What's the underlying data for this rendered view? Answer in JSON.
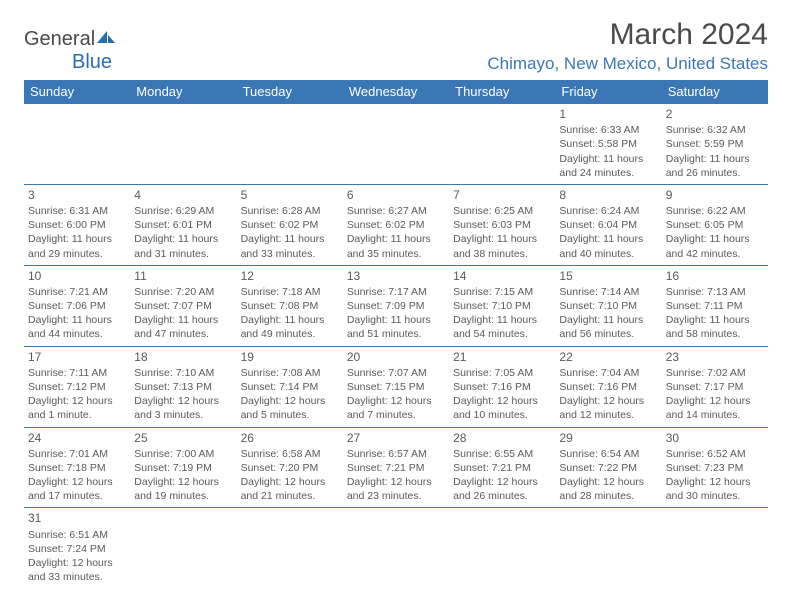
{
  "logo": {
    "general": "General",
    "blue": "Blue"
  },
  "title": "March 2024",
  "location": "Chimayo, New Mexico, United States",
  "colors": {
    "header_bg": "#3b77b5",
    "header_text": "#ffffff",
    "border": "#3b77b5",
    "location_text": "#3b77b5",
    "body_text": "#5a5a5a",
    "logo_blue": "#2a6cb0"
  },
  "weekdays": [
    "Sunday",
    "Monday",
    "Tuesday",
    "Wednesday",
    "Thursday",
    "Friday",
    "Saturday"
  ],
  "cells": [
    {
      "blank": true
    },
    {
      "blank": true
    },
    {
      "blank": true
    },
    {
      "blank": true
    },
    {
      "blank": true
    },
    {
      "day": "1",
      "sunrise": "Sunrise: 6:33 AM",
      "sunset": "Sunset: 5:58 PM",
      "daylight": "Daylight: 11 hours and 24 minutes."
    },
    {
      "day": "2",
      "sunrise": "Sunrise: 6:32 AM",
      "sunset": "Sunset: 5:59 PM",
      "daylight": "Daylight: 11 hours and 26 minutes."
    },
    {
      "day": "3",
      "sunrise": "Sunrise: 6:31 AM",
      "sunset": "Sunset: 6:00 PM",
      "daylight": "Daylight: 11 hours and 29 minutes."
    },
    {
      "day": "4",
      "sunrise": "Sunrise: 6:29 AM",
      "sunset": "Sunset: 6:01 PM",
      "daylight": "Daylight: 11 hours and 31 minutes."
    },
    {
      "day": "5",
      "sunrise": "Sunrise: 6:28 AM",
      "sunset": "Sunset: 6:02 PM",
      "daylight": "Daylight: 11 hours and 33 minutes."
    },
    {
      "day": "6",
      "sunrise": "Sunrise: 6:27 AM",
      "sunset": "Sunset: 6:02 PM",
      "daylight": "Daylight: 11 hours and 35 minutes."
    },
    {
      "day": "7",
      "sunrise": "Sunrise: 6:25 AM",
      "sunset": "Sunset: 6:03 PM",
      "daylight": "Daylight: 11 hours and 38 minutes."
    },
    {
      "day": "8",
      "sunrise": "Sunrise: 6:24 AM",
      "sunset": "Sunset: 6:04 PM",
      "daylight": "Daylight: 11 hours and 40 minutes."
    },
    {
      "day": "9",
      "sunrise": "Sunrise: 6:22 AM",
      "sunset": "Sunset: 6:05 PM",
      "daylight": "Daylight: 11 hours and 42 minutes."
    },
    {
      "day": "10",
      "sunrise": "Sunrise: 7:21 AM",
      "sunset": "Sunset: 7:06 PM",
      "daylight": "Daylight: 11 hours and 44 minutes."
    },
    {
      "day": "11",
      "sunrise": "Sunrise: 7:20 AM",
      "sunset": "Sunset: 7:07 PM",
      "daylight": "Daylight: 11 hours and 47 minutes."
    },
    {
      "day": "12",
      "sunrise": "Sunrise: 7:18 AM",
      "sunset": "Sunset: 7:08 PM",
      "daylight": "Daylight: 11 hours and 49 minutes."
    },
    {
      "day": "13",
      "sunrise": "Sunrise: 7:17 AM",
      "sunset": "Sunset: 7:09 PM",
      "daylight": "Daylight: 11 hours and 51 minutes."
    },
    {
      "day": "14",
      "sunrise": "Sunrise: 7:15 AM",
      "sunset": "Sunset: 7:10 PM",
      "daylight": "Daylight: 11 hours and 54 minutes."
    },
    {
      "day": "15",
      "sunrise": "Sunrise: 7:14 AM",
      "sunset": "Sunset: 7:10 PM",
      "daylight": "Daylight: 11 hours and 56 minutes."
    },
    {
      "day": "16",
      "sunrise": "Sunrise: 7:13 AM",
      "sunset": "Sunset: 7:11 PM",
      "daylight": "Daylight: 11 hours and 58 minutes."
    },
    {
      "day": "17",
      "sunrise": "Sunrise: 7:11 AM",
      "sunset": "Sunset: 7:12 PM",
      "daylight": "Daylight: 12 hours and 1 minute."
    },
    {
      "day": "18",
      "sunrise": "Sunrise: 7:10 AM",
      "sunset": "Sunset: 7:13 PM",
      "daylight": "Daylight: 12 hours and 3 minutes."
    },
    {
      "day": "19",
      "sunrise": "Sunrise: 7:08 AM",
      "sunset": "Sunset: 7:14 PM",
      "daylight": "Daylight: 12 hours and 5 minutes."
    },
    {
      "day": "20",
      "sunrise": "Sunrise: 7:07 AM",
      "sunset": "Sunset: 7:15 PM",
      "daylight": "Daylight: 12 hours and 7 minutes."
    },
    {
      "day": "21",
      "sunrise": "Sunrise: 7:05 AM",
      "sunset": "Sunset: 7:16 PM",
      "daylight": "Daylight: 12 hours and 10 minutes."
    },
    {
      "day": "22",
      "sunrise": "Sunrise: 7:04 AM",
      "sunset": "Sunset: 7:16 PM",
      "daylight": "Daylight: 12 hours and 12 minutes."
    },
    {
      "day": "23",
      "sunrise": "Sunrise: 7:02 AM",
      "sunset": "Sunset: 7:17 PM",
      "daylight": "Daylight: 12 hours and 14 minutes."
    },
    {
      "day": "24",
      "sunrise": "Sunrise: 7:01 AM",
      "sunset": "Sunset: 7:18 PM",
      "daylight": "Daylight: 12 hours and 17 minutes."
    },
    {
      "day": "25",
      "sunrise": "Sunrise: 7:00 AM",
      "sunset": "Sunset: 7:19 PM",
      "daylight": "Daylight: 12 hours and 19 minutes."
    },
    {
      "day": "26",
      "sunrise": "Sunrise: 6:58 AM",
      "sunset": "Sunset: 7:20 PM",
      "daylight": "Daylight: 12 hours and 21 minutes."
    },
    {
      "day": "27",
      "sunrise": "Sunrise: 6:57 AM",
      "sunset": "Sunset: 7:21 PM",
      "daylight": "Daylight: 12 hours and 23 minutes."
    },
    {
      "day": "28",
      "sunrise": "Sunrise: 6:55 AM",
      "sunset": "Sunset: 7:21 PM",
      "daylight": "Daylight: 12 hours and 26 minutes."
    },
    {
      "day": "29",
      "sunrise": "Sunrise: 6:54 AM",
      "sunset": "Sunset: 7:22 PM",
      "daylight": "Daylight: 12 hours and 28 minutes."
    },
    {
      "day": "30",
      "sunrise": "Sunrise: 6:52 AM",
      "sunset": "Sunset: 7:23 PM",
      "daylight": "Daylight: 12 hours and 30 minutes."
    },
    {
      "day": "31",
      "sunrise": "Sunrise: 6:51 AM",
      "sunset": "Sunset: 7:24 PM",
      "daylight": "Daylight: 12 hours and 33 minutes."
    },
    {
      "blank": true
    },
    {
      "blank": true
    },
    {
      "blank": true
    },
    {
      "blank": true
    },
    {
      "blank": true
    },
    {
      "blank": true
    }
  ]
}
